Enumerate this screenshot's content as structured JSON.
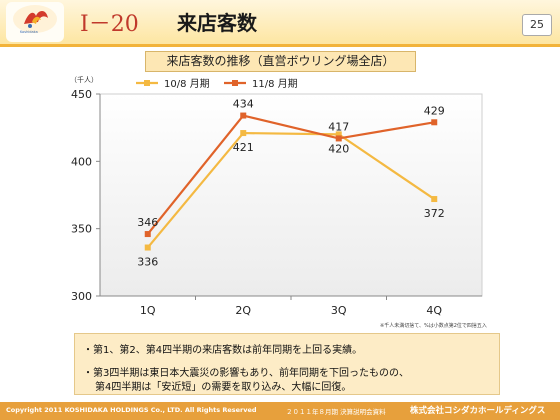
{
  "header": {
    "logo_text": "Koshidaka",
    "section_number": "Ⅰ－20",
    "title": "来店客数",
    "page_number": "25"
  },
  "chart_title": "来店客数の推移（直営ボウリング場全店）",
  "chart_data": {
    "type": "line",
    "title": "来店客数の推移（直営ボウリング場全店）",
    "ylabel": "（千人）",
    "xlabel": "",
    "categories": [
      "1Q",
      "2Q",
      "3Q",
      "4Q"
    ],
    "ylim": [
      300,
      450
    ],
    "yticks": [
      300,
      350,
      400,
      450
    ],
    "grid": false,
    "legend": "top-left",
    "series": [
      {
        "name": "10/8 月期",
        "values": [
          336,
          421,
          420,
          372
        ],
        "color": "#f4b942",
        "label_position": "below"
      },
      {
        "name": "11/8 月期",
        "values": [
          346,
          434,
          417,
          429
        ],
        "color": "#e0632a",
        "label_position": "above"
      }
    ]
  },
  "note": "※千人未満切捨て、%は小数点第2位で四捨五入",
  "bullets": [
    "・第1、第2、第4四半期の来店客数は前年同期を上回る実績。",
    "・第3四半期は東日本大震災の影響もあり、前年同期を下回ったものの、",
    "第4四半期は「安近短」の需要を取り込み、大幅に回復。"
  ],
  "footer": {
    "copyright": "Copyright 2011 KOSHIDAKA HOLDINGS Co., LTD. All Rights Reserved",
    "report": "２０１１年８月期 決算説明会資料",
    "company": "株式会社コシダカホールディングス"
  },
  "colors": {
    "accent": "#f2b33a",
    "footer": "#e7a03c",
    "title_box": "#fde7b4",
    "bullet_box": "#fdecc6"
  }
}
